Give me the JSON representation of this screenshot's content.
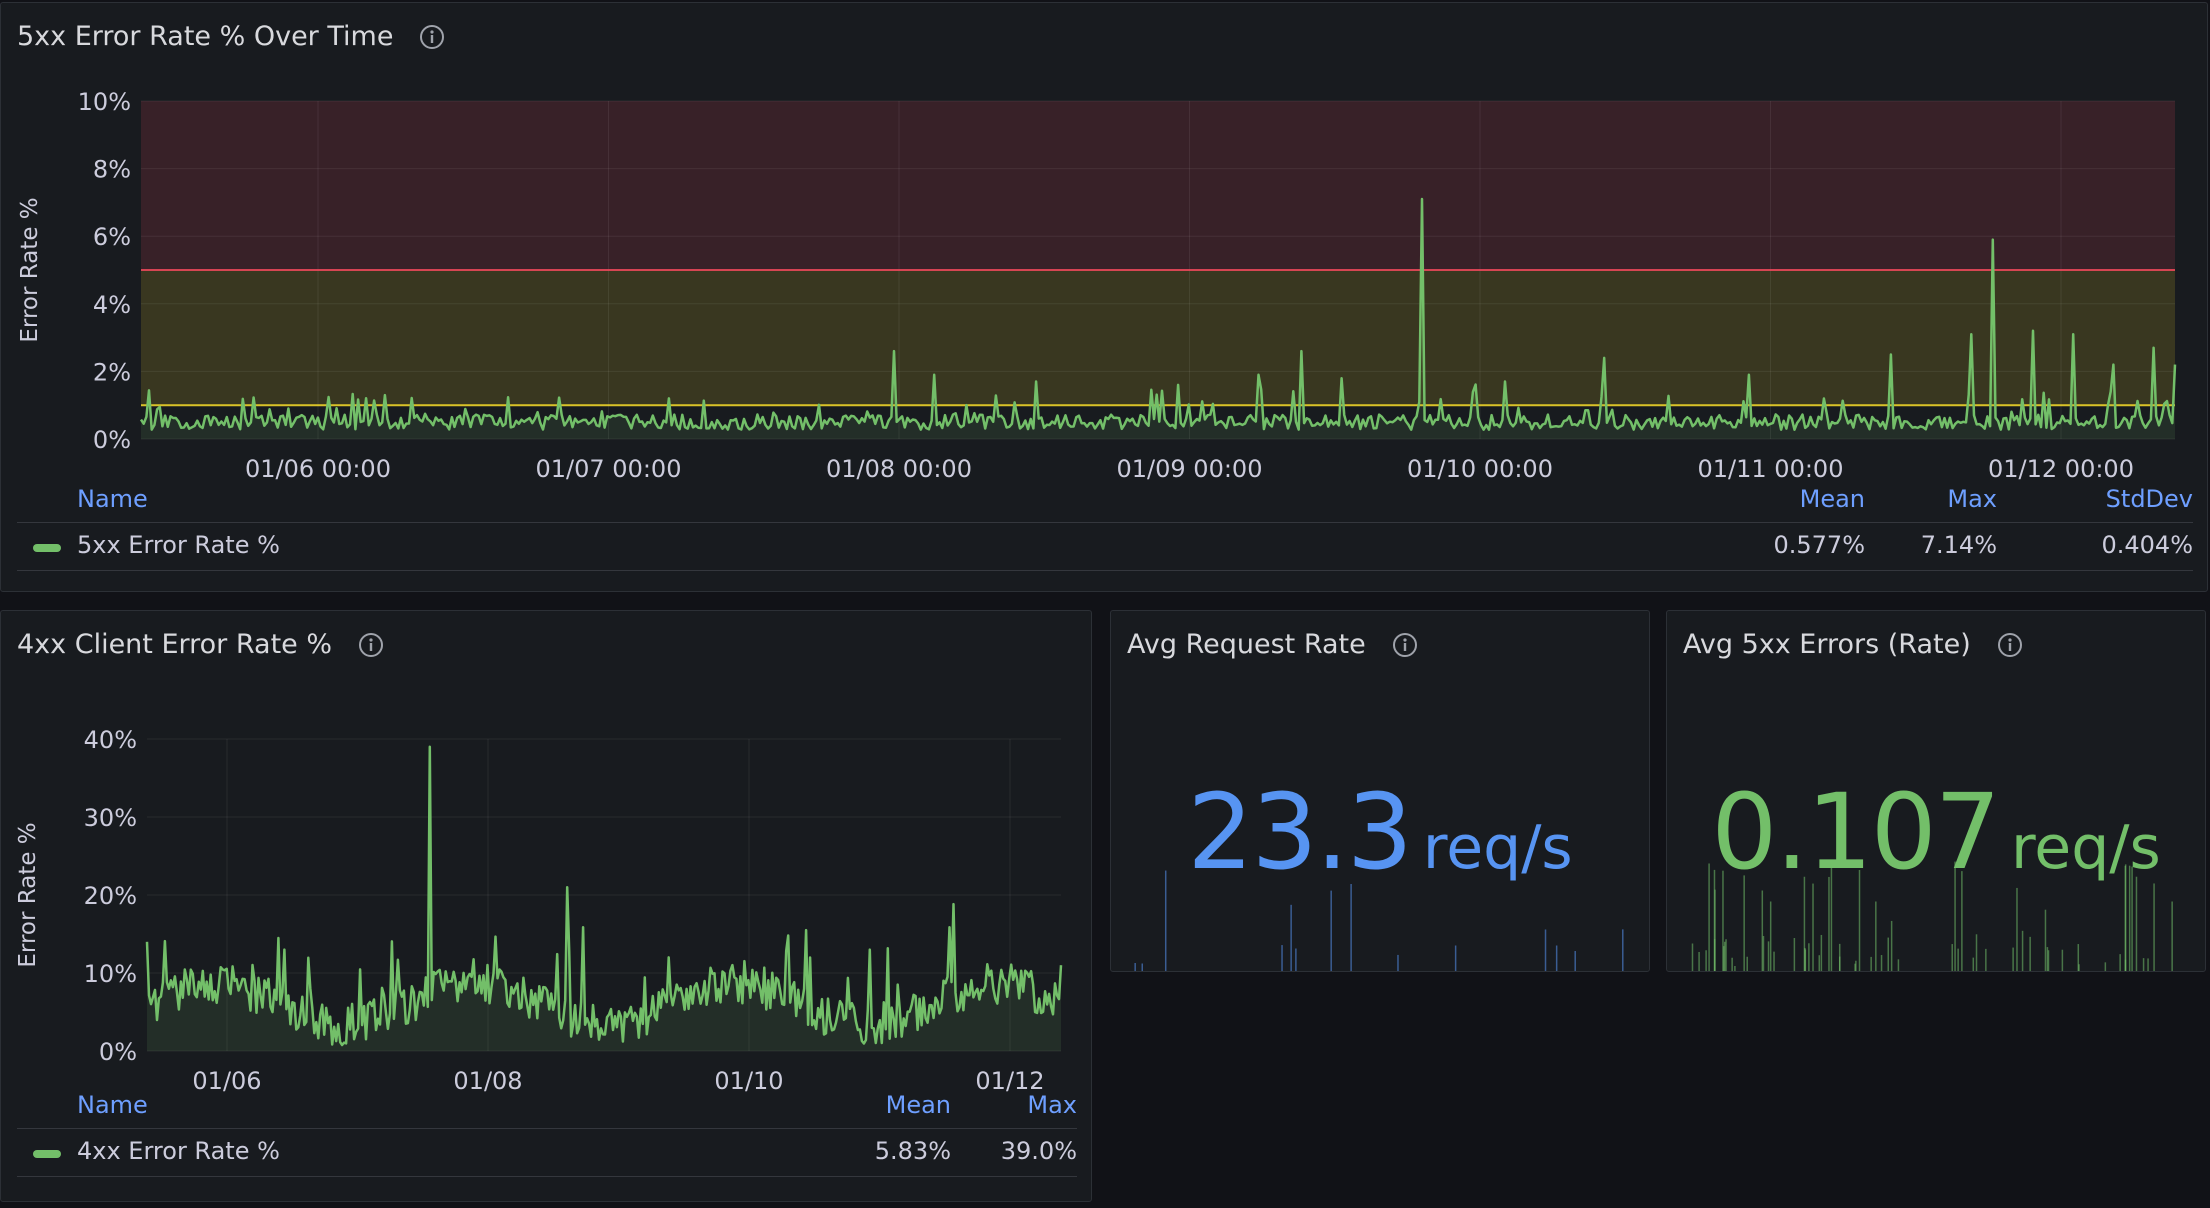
{
  "panels": {
    "error5xx": {
      "title": "5xx Error Rate % Over Time",
      "legend": {
        "headers": {
          "name": "Name",
          "mean": "Mean",
          "max": "Max",
          "stddev": "StdDev"
        },
        "row": {
          "name": "5xx Error Rate %",
          "mean": "0.577%",
          "max": "7.14%",
          "stddev": "0.404%"
        },
        "color": "#73bf69"
      }
    },
    "error4xx": {
      "title": "4xx Client Error Rate %",
      "legend": {
        "headers": {
          "name": "Name",
          "mean": "Mean",
          "max": "Max"
        },
        "row": {
          "name": "4xx Error Rate %",
          "mean": "5.83%",
          "max": "39.0%"
        },
        "color": "#73bf69"
      }
    },
    "avgRequest": {
      "title": "Avg Request Rate",
      "value": "23.3",
      "unit": "req/s",
      "color": "#5794f2"
    },
    "avg5xx": {
      "title": "Avg 5xx Errors (Rate)",
      "value": "0.107",
      "unit": "req/s",
      "color": "#73bf69"
    }
  },
  "chart_data": [
    {
      "type": "line",
      "title": "5xx Error Rate % Over Time",
      "ylabel": "Error Rate %",
      "ylim": [
        0,
        10
      ],
      "yticks": [
        "0%",
        "2%",
        "4%",
        "6%",
        "8%",
        "10%"
      ],
      "xlim": [
        "01/05 12:00",
        "01/12 12:00"
      ],
      "xticks": [
        "01/06 00:00",
        "01/07 00:00",
        "01/08 00:00",
        "01/09 00:00",
        "01/10 00:00",
        "01/11 00:00",
        "01/12 00:00"
      ],
      "thresholds": [
        {
          "value": 1,
          "color": "#fade2a"
        },
        {
          "value": 5,
          "color": "#f2495c"
        }
      ],
      "series": [
        {
          "name": "5xx Error Rate %",
          "color": "#73bf69",
          "baseline": 0.5,
          "spikes": [
            [
              0.12,
              1.3
            ],
            [
              0.26,
              1.2
            ],
            [
              0.37,
              2.6
            ],
            [
              0.39,
              1.9
            ],
            [
              0.44,
              1.7
            ],
            [
              0.51,
              1.6
            ],
            [
              0.55,
              1.9
            ],
            [
              0.57,
              2.6
            ],
            [
              0.59,
              1.8
            ],
            [
              0.63,
              7.1
            ],
            [
              0.67,
              1.7
            ],
            [
              0.72,
              2.4
            ],
            [
              0.79,
              1.9
            ],
            [
              0.86,
              2.5
            ],
            [
              0.9,
              3.1
            ],
            [
              0.91,
              5.9
            ],
            [
              0.93,
              3.2
            ],
            [
              0.95,
              3.1
            ],
            [
              0.97,
              2.2
            ],
            [
              0.99,
              2.7
            ],
            [
              1.0,
              2.2
            ]
          ]
        }
      ]
    },
    {
      "type": "area",
      "title": "4xx Client Error Rate %",
      "ylabel": "Error Rate %",
      "ylim": [
        0,
        40
      ],
      "yticks": [
        "0%",
        "10%",
        "20%",
        "30%",
        "40%"
      ],
      "xticks": [
        "01/06",
        "01/08",
        "01/10",
        "01/12"
      ],
      "series": [
        {
          "name": "4xx Error Rate %",
          "color": "#73bf69",
          "baseline": 6,
          "spikes": [
            [
              0.0,
              14
            ],
            [
              0.15,
              13
            ],
            [
              0.31,
              39
            ],
            [
              0.46,
              21
            ],
            [
              0.57,
              12
            ],
            [
              0.79,
              13
            ],
            [
              1.0,
              11
            ]
          ]
        }
      ]
    }
  ]
}
